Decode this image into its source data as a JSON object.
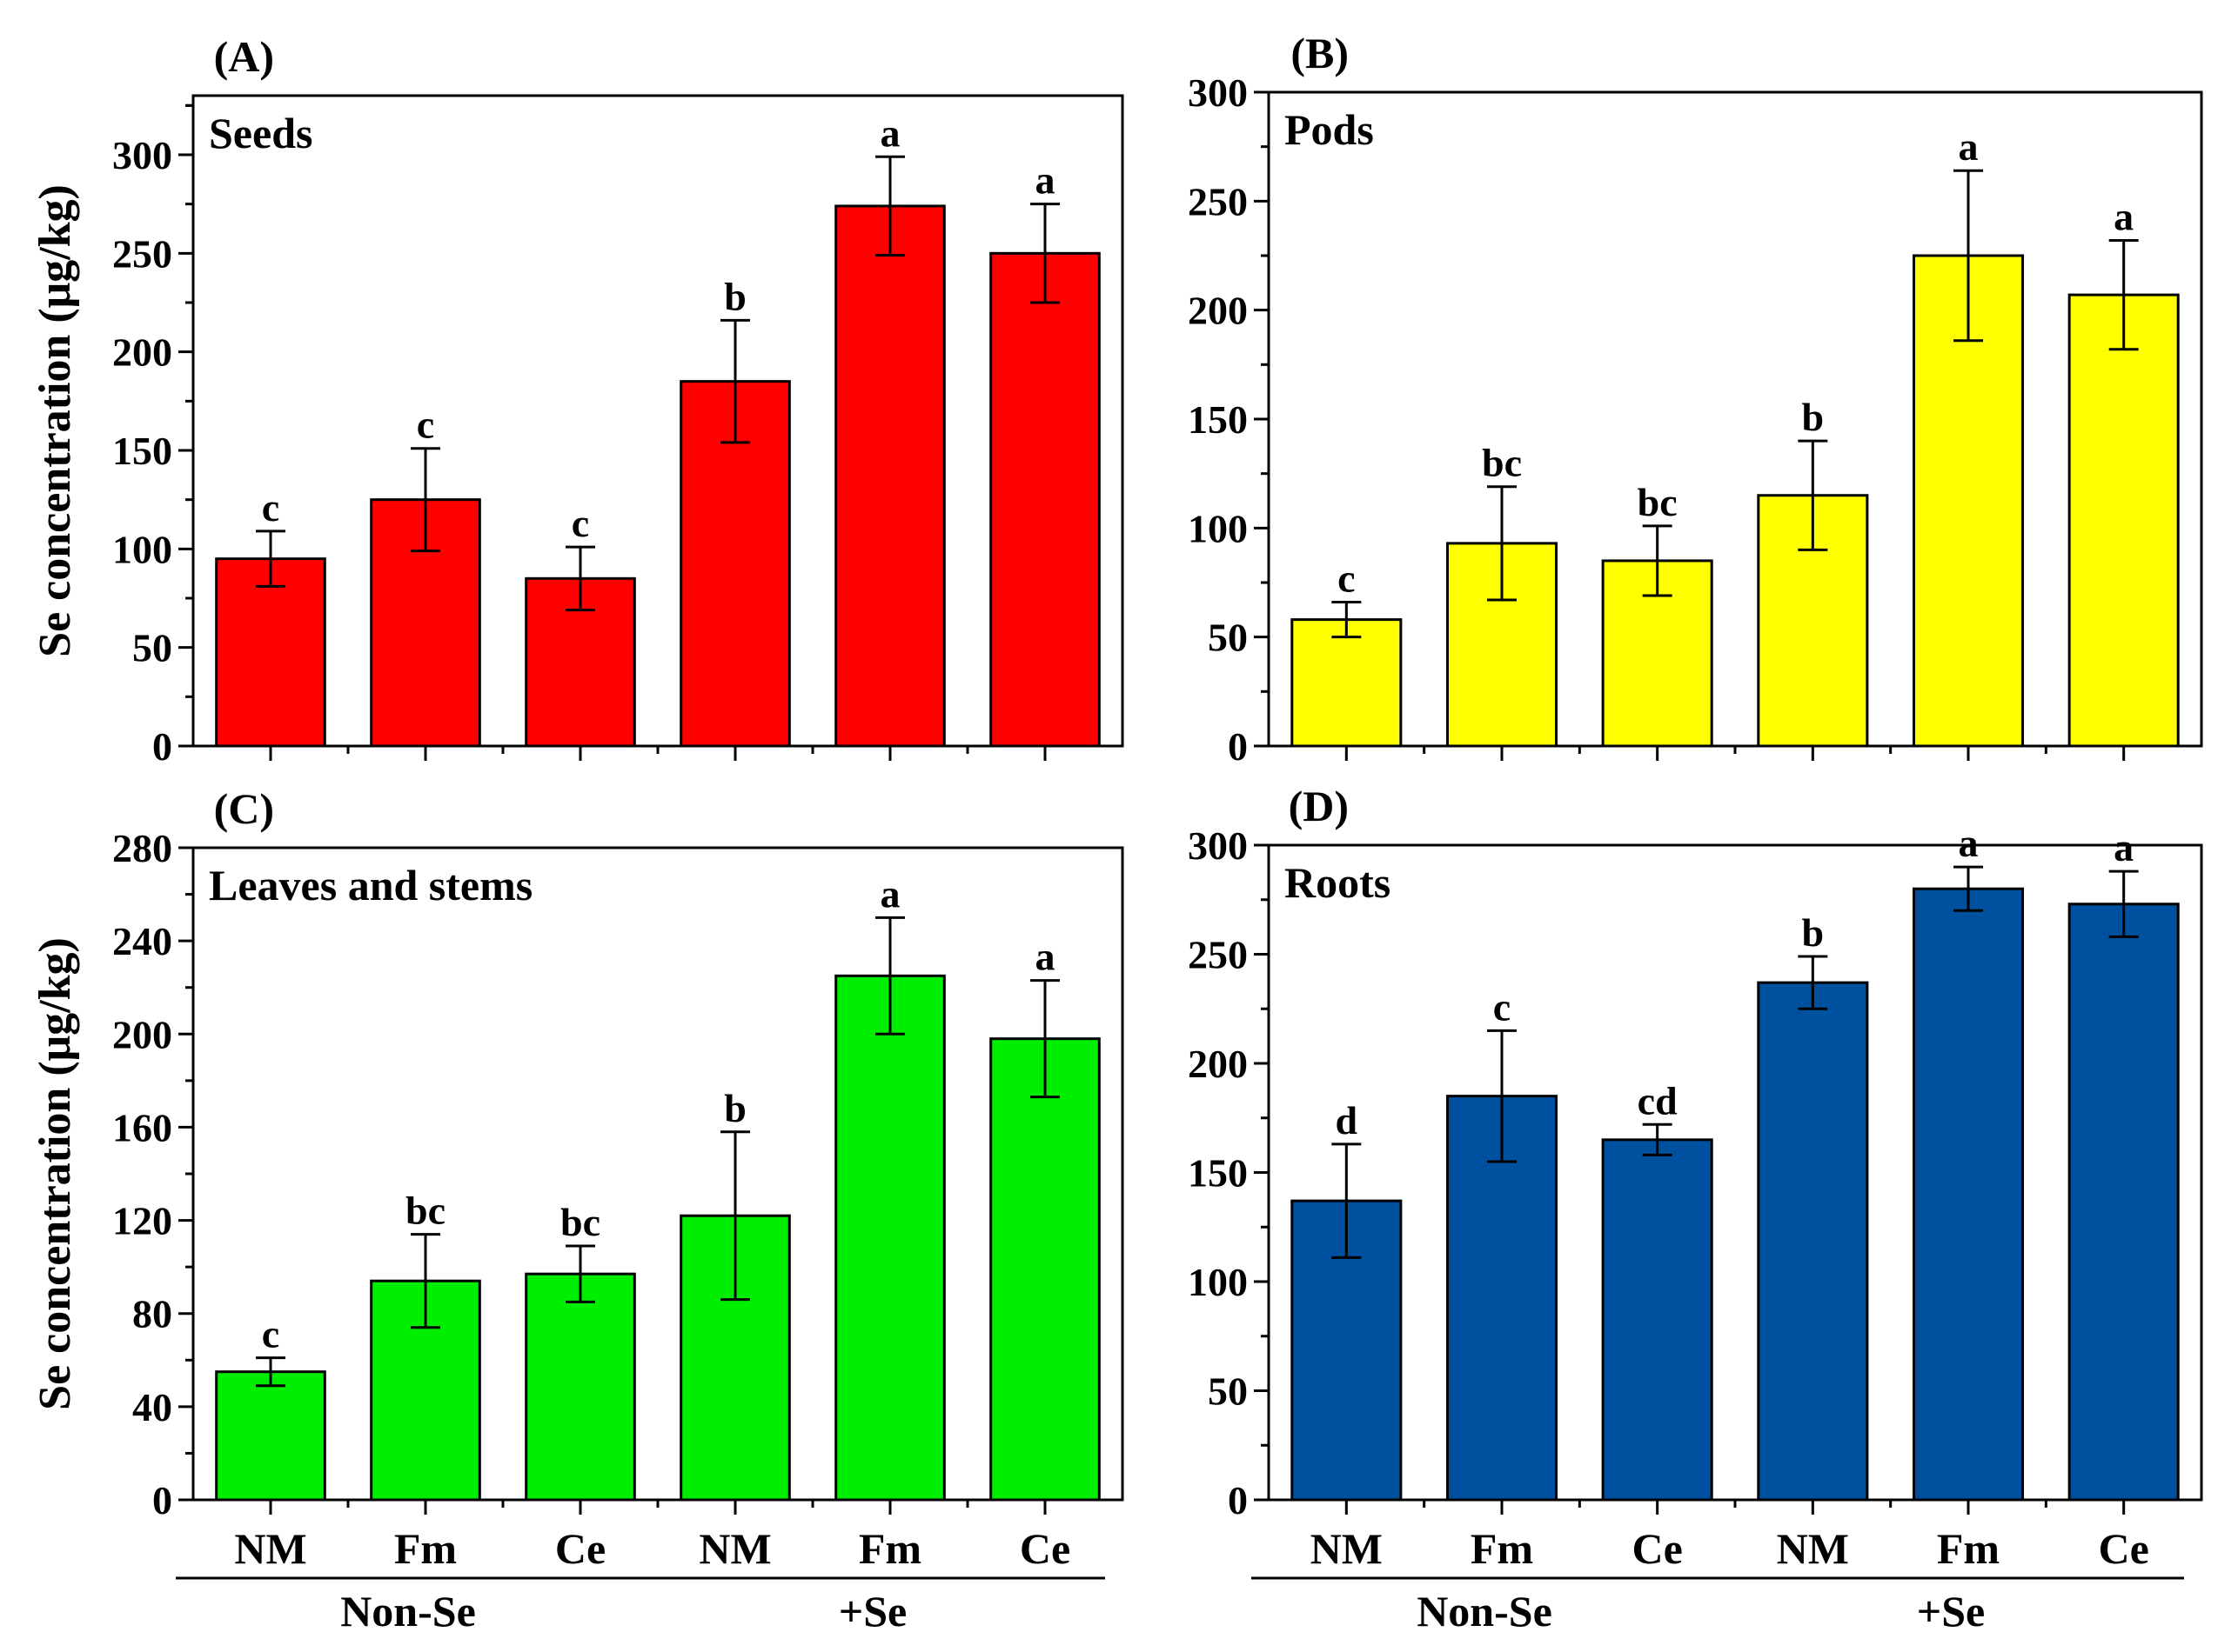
{
  "figure": {
    "group_labels": [
      "Non-Se",
      "+Se"
    ],
    "categories": [
      "NM",
      "Fm",
      "Ce",
      "NM",
      "Fm",
      "Ce"
    ]
  },
  "chart_data": [
    {
      "type": "bar",
      "panel_label": "(A)",
      "title": "Seeds",
      "ylabel": "Se concentration (μg/kg)",
      "xlabel": "",
      "color": "#ff0000",
      "ylim": [
        0,
        330
      ],
      "yticks": [
        0,
        50,
        100,
        150,
        200,
        250,
        300
      ],
      "tick_labels": [
        "0",
        "50",
        "100",
        "150",
        "200",
        "250",
        "300"
      ],
      "categories": [
        "NM",
        "Fm",
        "Ce",
        "NM",
        "Fm",
        "Ce"
      ],
      "groups": [
        "Non-Se",
        "Non-Se",
        "Non-Se",
        "+Se",
        "+Se",
        "+Se"
      ],
      "values": [
        95,
        125,
        85,
        185,
        274,
        250
      ],
      "errors": [
        14,
        26,
        16,
        31,
        25,
        25
      ],
      "letters": [
        "c",
        "c",
        "c",
        "b",
        "a",
        "a"
      ]
    },
    {
      "type": "bar",
      "panel_label": "(B)",
      "title": "Pods",
      "ylabel": "",
      "xlabel": "",
      "color": "#ffff00",
      "ylim": [
        0,
        300
      ],
      "yticks": [
        0,
        50,
        100,
        150,
        200,
        250,
        300
      ],
      "tick_labels": [
        "0",
        "50",
        "100",
        "150",
        "200",
        "250",
        "300"
      ],
      "categories": [
        "NM",
        "Fm",
        "Ce",
        "NM",
        "Fm",
        "Ce"
      ],
      "groups": [
        "Non-Se",
        "Non-Se",
        "Non-Se",
        "+Se",
        "+Se",
        "+Se"
      ],
      "values": [
        58,
        93,
        85,
        115,
        225,
        207
      ],
      "errors": [
        8,
        26,
        16,
        25,
        39,
        25
      ],
      "letters": [
        "c",
        "bc",
        "bc",
        "b",
        "a",
        "a"
      ]
    },
    {
      "type": "bar",
      "panel_label": "(C)",
      "title": "Leaves and stems",
      "ylabel": "Se concentration (μg/kg)",
      "xlabel": "",
      "color": "#00ee00",
      "ylim": [
        0,
        280
      ],
      "yticks": [
        0,
        40,
        80,
        120,
        160,
        200,
        240,
        280
      ],
      "tick_labels": [
        "0",
        "40",
        "80",
        "120",
        "160",
        "200",
        "240",
        "280"
      ],
      "categories": [
        "NM",
        "Fm",
        "Ce",
        "NM",
        "Fm",
        "Ce"
      ],
      "groups": [
        "Non-Se",
        "Non-Se",
        "Non-Se",
        "+Se",
        "+Se",
        "+Se"
      ],
      "values": [
        55,
        94,
        97,
        122,
        225,
        198
      ],
      "errors": [
        6,
        20,
        12,
        36,
        25,
        25
      ],
      "letters": [
        "c",
        "bc",
        "bc",
        "b",
        "a",
        "a"
      ]
    },
    {
      "type": "bar",
      "panel_label": "(D)",
      "title": "Roots",
      "ylabel": "",
      "xlabel": "",
      "color": "#0050a0",
      "ylim": [
        0,
        300
      ],
      "yticks": [
        0,
        50,
        100,
        150,
        200,
        250,
        300
      ],
      "tick_labels": [
        "0",
        "50",
        "100",
        "150",
        "200",
        "250",
        "300"
      ],
      "categories": [
        "NM",
        "Fm",
        "Ce",
        "NM",
        "Fm",
        "Ce"
      ],
      "groups": [
        "Non-Se",
        "Non-Se",
        "Non-Se",
        "+Se",
        "+Se",
        "+Se"
      ],
      "values": [
        137,
        185,
        165,
        237,
        280,
        273
      ],
      "errors": [
        26,
        30,
        7,
        12,
        10,
        15
      ],
      "letters": [
        "d",
        "c",
        "cd",
        "b",
        "a",
        "a"
      ]
    }
  ]
}
